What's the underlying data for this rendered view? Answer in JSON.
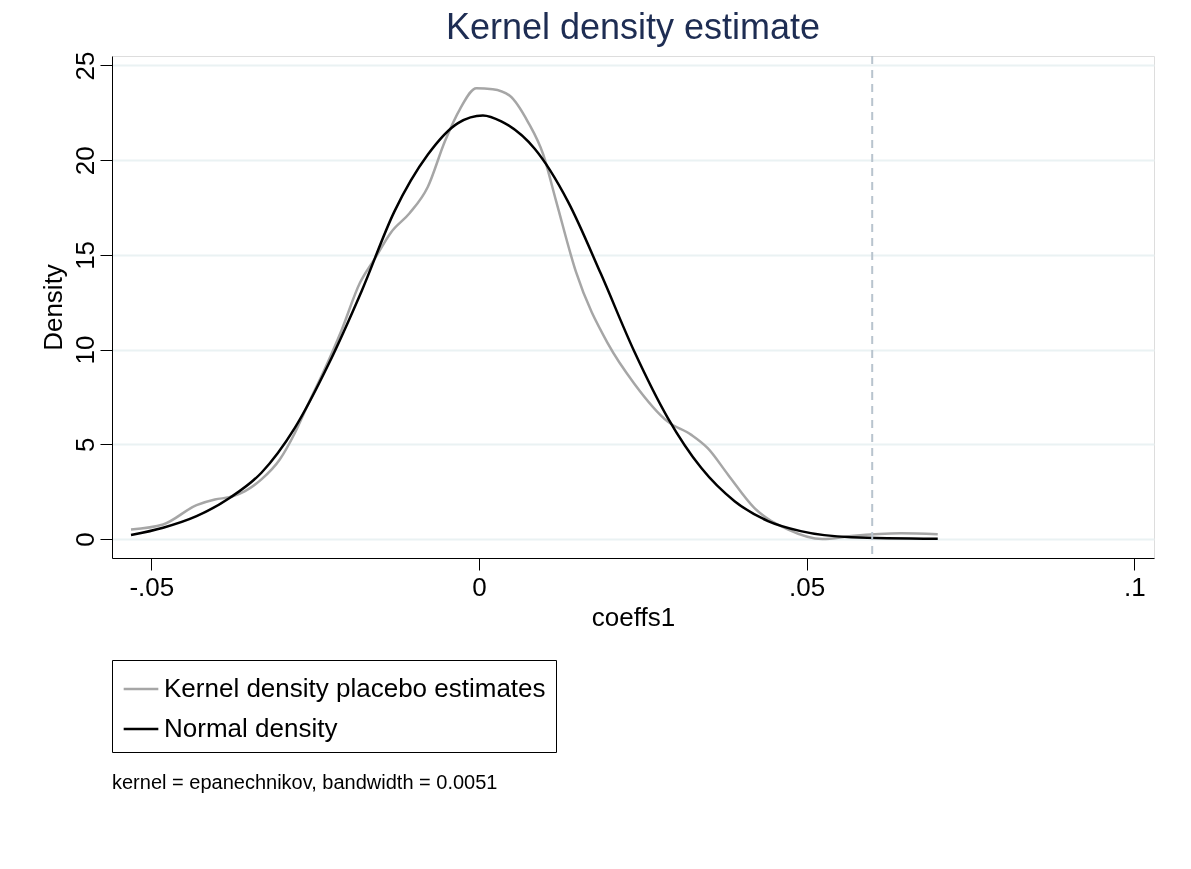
{
  "chart_data": {
    "type": "line",
    "title": "Kernel density estimate",
    "xlabel": "coeffs1",
    "ylabel": "Density",
    "xlim": [
      -0.056,
      0.103
    ],
    "xticks": [
      {
        "value": -0.05,
        "label": "-.05"
      },
      0,
      {
        "value": 0.05,
        "label": ".05"
      },
      {
        "value": 0.1,
        "label": ".1"
      }
    ],
    "ylim": [
      -1,
      25.5
    ],
    "yticks": [
      0,
      5,
      10,
      15,
      20,
      25
    ],
    "grid": "y",
    "legend": "bottom",
    "line_style": "solid",
    "marker": "none",
    "series": [
      {
        "name": "Kernel density placebo estimates",
        "color": "#a6a6a6",
        "x": [
          -0.0531,
          -0.0482,
          -0.0431,
          -0.0403,
          -0.0378,
          -0.0357,
          -0.0332,
          -0.0304,
          -0.0281,
          -0.0261,
          -0.0235,
          -0.021,
          -0.0182,
          -0.0159,
          -0.0134,
          -0.0106,
          -0.0078,
          -0.0052,
          -0.0029,
          -0.0004,
          0.0021,
          0.0047,
          0.0075,
          0.0098,
          0.0118,
          0.0148,
          0.0197,
          0.0237,
          0.0288,
          0.0324,
          0.0349,
          0.038,
          0.042,
          0.0471,
          0.0524,
          0.0568,
          0.0644,
          0.07
        ],
        "values": [
          0.51,
          0.77,
          1.79,
          2.09,
          2.23,
          2.53,
          3.15,
          4.2,
          5.6,
          7.1,
          9.0,
          11.0,
          13.5,
          14.8,
          16.2,
          17.2,
          18.6,
          21.0,
          22.7,
          23.8,
          23.75,
          23.4,
          22.0,
          20.3,
          17.8,
          14.1,
          10.3,
          8.2,
          6.2,
          5.5,
          4.8,
          3.4,
          1.65,
          0.51,
          0.0,
          0.16,
          0.3,
          0.25
        ]
      },
      {
        "name": "Normal density",
        "color": "#000000",
        "x": [
          -0.0531,
          -0.0482,
          -0.0431,
          -0.038,
          -0.0332,
          -0.0281,
          -0.023,
          -0.0179,
          -0.0129,
          -0.0078,
          -0.0032,
          0.0006,
          0.0034,
          0.0085,
          0.0136,
          0.0186,
          0.0237,
          0.0288,
          0.0339,
          0.039,
          0.0441,
          0.0491,
          0.0568,
          0.07
        ],
        "values": [
          0.21,
          0.6,
          1.21,
          2.18,
          3.5,
          5.87,
          9.2,
          13.1,
          17.3,
          20.3,
          21.96,
          22.36,
          22.05,
          20.6,
          17.8,
          14.0,
          9.9,
          6.4,
          3.76,
          2.0,
          0.95,
          0.42,
          0.1,
          0.02
        ]
      }
    ],
    "ref_lines": [
      {
        "axis": "x",
        "value": 0.06,
        "color": "#b8c4ce",
        "line_style": "dashed"
      }
    ],
    "annotations": [
      "kernel = epanechnikov, bandwidth = 0.0051"
    ]
  }
}
